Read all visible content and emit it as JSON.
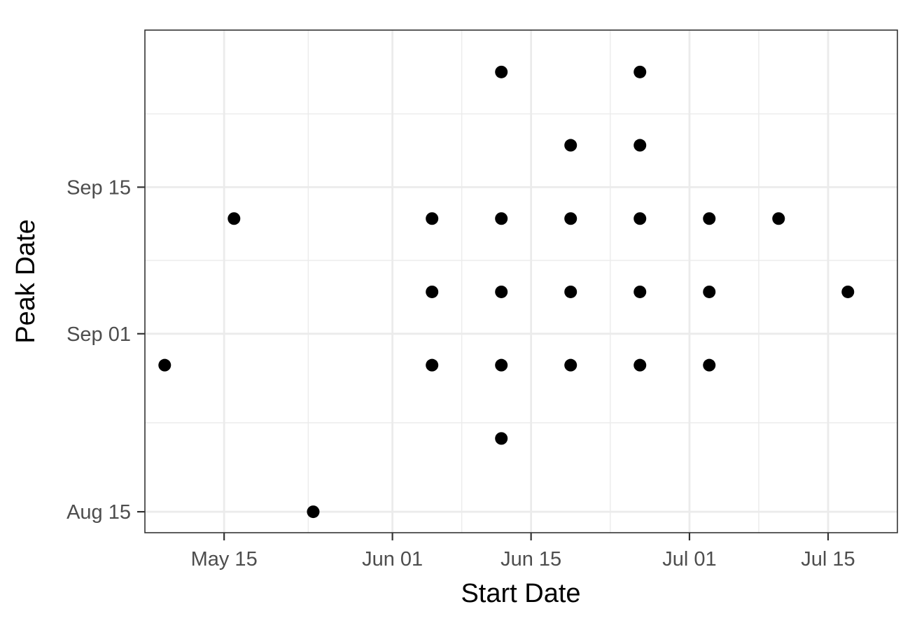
{
  "chart_data": {
    "type": "scatter",
    "title": "",
    "xlabel": "Start Date",
    "ylabel": "Peak Date",
    "x_type": "date",
    "y_type": "date",
    "xlim": [
      "2021-05-07",
      "2021-07-22"
    ],
    "ylim": [
      "2021-08-13",
      "2021-09-30"
    ],
    "x_ticks": [
      {
        "value": "2021-05-15",
        "label": "May 15"
      },
      {
        "value": "2021-06-01",
        "label": "Jun 01"
      },
      {
        "value": "2021-06-15",
        "label": "Jun 15"
      },
      {
        "value": "2021-07-01",
        "label": "Jul 01"
      },
      {
        "value": "2021-07-15",
        "label": "Jul 15"
      }
    ],
    "y_ticks": [
      {
        "value": "2021-08-15",
        "label": "Aug 15"
      },
      {
        "value": "2021-09-01",
        "label": "Sep 01"
      },
      {
        "value": "2021-09-15",
        "label": "Sep 15"
      }
    ],
    "grid": true,
    "points": [
      {
        "x": "2021-05-09",
        "y": "2021-08-29"
      },
      {
        "x": "2021-05-16",
        "y": "2021-09-12"
      },
      {
        "x": "2021-05-24",
        "y": "2021-08-15"
      },
      {
        "x": "2021-06-05",
        "y": "2021-08-29"
      },
      {
        "x": "2021-06-05",
        "y": "2021-09-05"
      },
      {
        "x": "2021-06-05",
        "y": "2021-09-12"
      },
      {
        "x": "2021-06-12",
        "y": "2021-08-22"
      },
      {
        "x": "2021-06-12",
        "y": "2021-08-29"
      },
      {
        "x": "2021-06-12",
        "y": "2021-09-05"
      },
      {
        "x": "2021-06-12",
        "y": "2021-09-12"
      },
      {
        "x": "2021-06-12",
        "y": "2021-09-26"
      },
      {
        "x": "2021-06-19",
        "y": "2021-08-29"
      },
      {
        "x": "2021-06-19",
        "y": "2021-09-05"
      },
      {
        "x": "2021-06-19",
        "y": "2021-09-12"
      },
      {
        "x": "2021-06-19",
        "y": "2021-09-19"
      },
      {
        "x": "2021-06-26",
        "y": "2021-08-29"
      },
      {
        "x": "2021-06-26",
        "y": "2021-09-05"
      },
      {
        "x": "2021-06-26",
        "y": "2021-09-12"
      },
      {
        "x": "2021-06-26",
        "y": "2021-09-19"
      },
      {
        "x": "2021-06-26",
        "y": "2021-09-26"
      },
      {
        "x": "2021-07-03",
        "y": "2021-08-29"
      },
      {
        "x": "2021-07-03",
        "y": "2021-09-05"
      },
      {
        "x": "2021-07-03",
        "y": "2021-09-12"
      },
      {
        "x": "2021-07-10",
        "y": "2021-09-12"
      },
      {
        "x": "2021-07-17",
        "y": "2021-09-05"
      }
    ],
    "point_color": "#000000",
    "panel_border_color": "#333333",
    "grid_color": "#ebebeb"
  }
}
